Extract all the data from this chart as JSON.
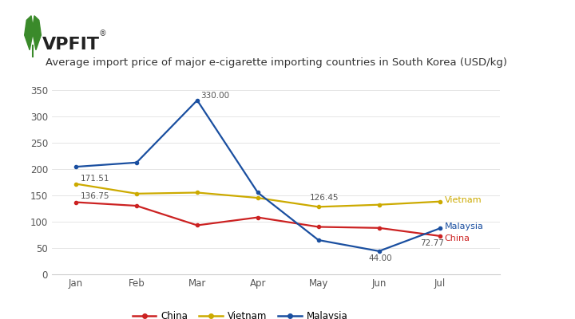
{
  "title": "Average import price of major e-cigarette importing countries in South Korea (USD/kg)",
  "months": [
    "Jan",
    "Feb",
    "Mar",
    "Apr",
    "May",
    "Jun",
    "Jul"
  ],
  "china": [
    136.75,
    130,
    93,
    108,
    90,
    88,
    72.77
  ],
  "vietnam": [
    171.51,
    153,
    155,
    145,
    128,
    132,
    138
  ],
  "malaysia": [
    204,
    212,
    330.0,
    155,
    65,
    44.0,
    87
  ],
  "china_color": "#cc2222",
  "vietnam_color": "#ccaa00",
  "malaysia_color": "#1a4fa0",
  "ylim": [
    0,
    375
  ],
  "yticks": [
    0,
    50,
    100,
    150,
    200,
    250,
    300,
    350
  ],
  "background_color": "#ffffff",
  "annot_color": "#555555",
  "annot_fontsize": 7.5,
  "title_fontsize": 9.5,
  "tick_fontsize": 8.5,
  "legend_fontsize": 8.5,
  "side_label_fontsize": 8.0
}
